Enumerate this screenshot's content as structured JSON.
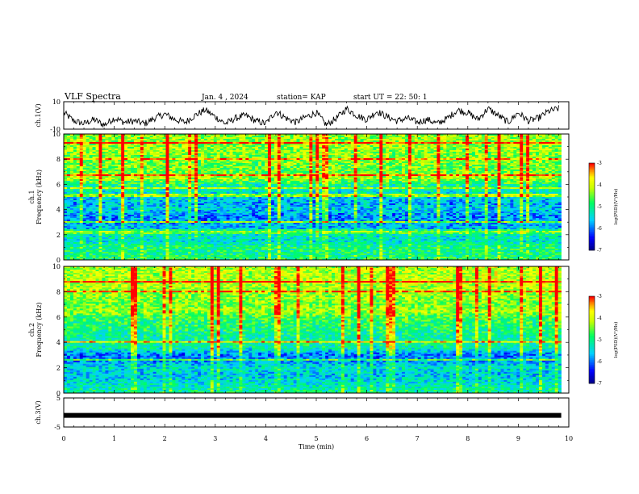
{
  "header": {
    "title": "VLF Spectra",
    "date": "Jan. 4 , 2024",
    "station": "station= KAP",
    "start": "start UT = 22: 50: 1"
  },
  "chart_data": [
    {
      "type": "line",
      "panel": "ch1-waveform",
      "ylabel": "ch.1(V)",
      "ylim": [
        -10,
        10
      ],
      "yticks": [
        "10",
        "-10"
      ],
      "xlim": [
        0,
        10
      ],
      "series": [
        {
          "x": [
            0,
            0.2,
            0.4,
            0.6,
            0.8,
            1.0,
            1.2,
            1.4,
            1.6,
            1.8,
            2.0,
            2.2,
            2.4,
            2.6,
            2.8,
            3.0,
            3.2,
            3.4,
            3.6,
            3.8,
            4.0,
            4.2,
            4.4,
            4.6,
            4.8,
            5.0,
            5.2,
            5.4,
            5.6,
            5.8,
            6.0,
            6.2,
            6.4,
            6.6,
            6.8,
            7.0,
            7.2,
            7.4,
            7.6,
            7.8,
            8.0,
            8.2,
            8.4,
            8.6,
            8.8,
            9.0,
            9.2,
            9.4,
            9.6,
            9.8
          ],
          "y": [
            2,
            -4,
            -6,
            -3,
            -7,
            -2,
            -5,
            -4,
            -6,
            -2,
            1,
            -3,
            -5,
            0,
            4,
            -1,
            -6,
            -2,
            0,
            -4,
            -6,
            3,
            -2,
            -5,
            -1,
            2,
            -7,
            -2,
            5,
            0,
            -3,
            3,
            -1,
            -4,
            -2,
            -5,
            -3,
            -6,
            -2,
            4,
            2,
            -3,
            5,
            0,
            -5,
            2,
            -4,
            -2,
            3,
            5
          ]
        }
      ]
    },
    {
      "type": "heatmap",
      "panel": "ch1-spectrogram",
      "ylabel": "ch.1\nFrequency (kHz)",
      "ylim": [
        0,
        10
      ],
      "yticks": [
        "0",
        "2",
        "4",
        "6",
        "8",
        "10"
      ],
      "xlim": [
        0,
        9.85
      ],
      "colorbar": {
        "label": "log(PSD)(V²/Hz)",
        "range": [
          -7,
          -3
        ],
        "ticks": [
          "-3",
          "-4",
          "-5",
          "-6",
          "-7"
        ]
      },
      "freq_profile": [
        {
          "f": 0.0,
          "level": 0.55
        },
        {
          "f": 0.5,
          "level": 0.5
        },
        {
          "f": 1.0,
          "level": 0.52
        },
        {
          "f": 1.5,
          "level": 0.42
        },
        {
          "f": 2.0,
          "level": 0.44
        },
        {
          "f": 2.2,
          "level": 0.7
        },
        {
          "f": 2.5,
          "level": 0.35
        },
        {
          "f": 3.0,
          "level": 0.3
        },
        {
          "f": 3.5,
          "level": 0.28
        },
        {
          "f": 4.0,
          "level": 0.38
        },
        {
          "f": 4.5,
          "level": 0.32
        },
        {
          "f": 5.0,
          "level": 0.38
        },
        {
          "f": 5.5,
          "level": 0.45
        },
        {
          "f": 6.0,
          "level": 0.5
        },
        {
          "f": 6.5,
          "level": 0.72
        },
        {
          "f": 7.0,
          "level": 0.62
        },
        {
          "f": 8.0,
          "level": 0.66
        },
        {
          "f": 9.0,
          "level": 0.68
        },
        {
          "f": 10.0,
          "level": 0.68
        }
      ]
    },
    {
      "type": "heatmap",
      "panel": "ch2-spectrogram",
      "ylabel": "ch.2\nFrequency (kHz)",
      "ylim": [
        0,
        10
      ],
      "yticks": [
        "0",
        "2",
        "4",
        "6",
        "8",
        "10"
      ],
      "xlim": [
        0,
        9.85
      ],
      "colorbar": {
        "label": "log(PSD)(V²/Hz)",
        "range": [
          -7,
          -3
        ],
        "ticks": [
          "-3",
          "-4",
          "-5",
          "-6",
          "-7"
        ]
      },
      "freq_profile": [
        {
          "f": 0.0,
          "level": 0.5
        },
        {
          "f": 0.5,
          "level": 0.45
        },
        {
          "f": 1.0,
          "level": 0.4
        },
        {
          "f": 1.5,
          "level": 0.36
        },
        {
          "f": 2.0,
          "level": 0.42
        },
        {
          "f": 2.5,
          "level": 0.3
        },
        {
          "f": 3.0,
          "level": 0.26
        },
        {
          "f": 3.5,
          "level": 0.45
        },
        {
          "f": 4.0,
          "level": 0.5
        },
        {
          "f": 4.5,
          "level": 0.48
        },
        {
          "f": 5.0,
          "level": 0.52
        },
        {
          "f": 6.0,
          "level": 0.58
        },
        {
          "f": 6.5,
          "level": 0.7
        },
        {
          "f": 7.0,
          "level": 0.65
        },
        {
          "f": 8.0,
          "level": 0.7
        },
        {
          "f": 9.0,
          "level": 0.72
        },
        {
          "f": 10.0,
          "level": 0.72
        }
      ]
    },
    {
      "type": "line",
      "panel": "ch3-waveform",
      "ylabel": "ch.3(V)",
      "ylim": [
        -5,
        5
      ],
      "yticks": [
        "5",
        "-5"
      ],
      "xlim": [
        0,
        10
      ],
      "series": [
        {
          "x": [
            0,
            9.85
          ],
          "y": [
            -1,
            -1
          ]
        }
      ]
    }
  ],
  "xaxis": {
    "label": "Time (min)",
    "ticks": [
      "0",
      "1",
      "2",
      "3",
      "4",
      "5",
      "6",
      "7",
      "8",
      "9",
      "10"
    ],
    "xlim": [
      0,
      10
    ]
  },
  "colors": {
    "scale": [
      "#000080",
      "#0000ff",
      "#00ffff",
      "#00ff00",
      "#ffff00",
      "#ff0000",
      "#ff00ff"
    ]
  }
}
